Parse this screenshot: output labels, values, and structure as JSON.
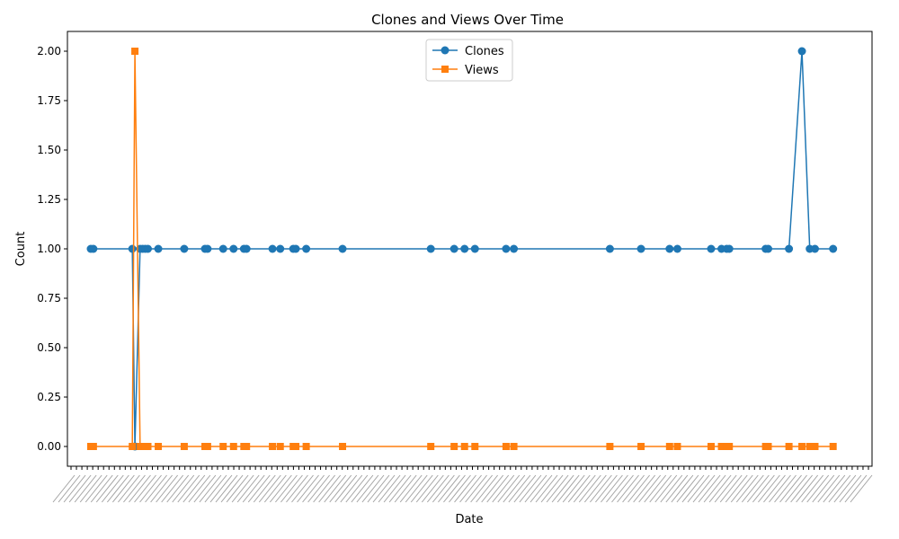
{
  "chart_data": {
    "type": "line",
    "title": "Clones and Views Over Time",
    "xlabel": "Date",
    "ylabel": "Count",
    "ylim": [
      -0.1,
      2.1
    ],
    "yticks": [
      "0.00",
      "0.25",
      "0.50",
      "0.75",
      "1.00",
      "1.25",
      "1.50",
      "1.75",
      "2.00"
    ],
    "ytick_values": [
      0,
      0.25,
      0.5,
      0.75,
      1,
      1.25,
      1.5,
      1.75,
      2
    ],
    "xtick_labels_note": "dense overlapping date labels, unreadable",
    "x": [
      1,
      2,
      17,
      18,
      20,
      21,
      22,
      23,
      27,
      37,
      45,
      46,
      52,
      56,
      60,
      61,
      71,
      74,
      79,
      80,
      84,
      98,
      132,
      141,
      145,
      149,
      161,
      164,
      201,
      213,
      224,
      227,
      240,
      244,
      246,
      247,
      261,
      262,
      270,
      275,
      278,
      280,
      287
    ],
    "series": [
      {
        "name": "Clones",
        "color": "#1f77b4",
        "marker": "circle",
        "values": [
          1,
          1,
          1,
          0,
          1,
          1,
          1,
          1,
          1,
          1,
          1,
          1,
          1,
          1,
          1,
          1,
          1,
          1,
          1,
          1,
          1,
          1,
          1,
          1,
          1,
          1,
          1,
          1,
          1,
          1,
          1,
          1,
          1,
          1,
          1,
          1,
          1,
          1,
          1,
          2,
          1,
          1,
          1
        ]
      },
      {
        "name": "Views",
        "color": "#ff7f0e",
        "marker": "square",
        "values": [
          0,
          0,
          0,
          2,
          0,
          0,
          0,
          0,
          0,
          0,
          0,
          0,
          0,
          0,
          0,
          0,
          0,
          0,
          0,
          0,
          0,
          0,
          0,
          0,
          0,
          0,
          0,
          0,
          0,
          0,
          0,
          0,
          0,
          0,
          0,
          0,
          0,
          0,
          0,
          0,
          0,
          0,
          0
        ]
      }
    ],
    "grid": false,
    "legend": "upper-center"
  }
}
